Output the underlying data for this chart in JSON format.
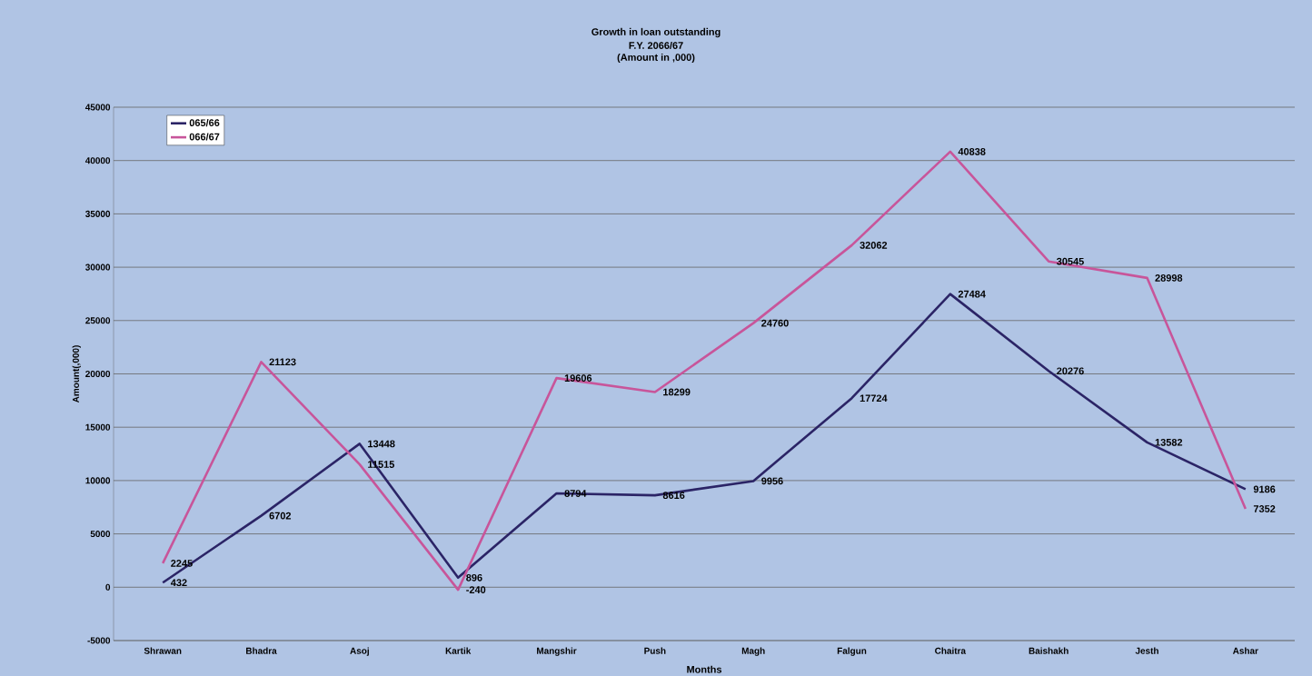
{
  "chart_data": {
    "type": "line",
    "title": "Growth in loan outstanding",
    "subtitle": "F.Y. 2066/67",
    "annotations": [
      "(Amount in ,000)"
    ],
    "xlabel": "Months",
    "ylabel": "Amount(,000)",
    "categories": [
      "Shrawan",
      "Bhadra",
      "Asoj",
      "Kartik",
      "Mangshir",
      "Push",
      "Magh",
      "Falgun",
      "Chaitra",
      "Baishakh",
      "Jesth",
      "Ashar"
    ],
    "series": [
      {
        "name": "065/66",
        "color": "#2b2466",
        "values": [
          432,
          6702,
          13448,
          896,
          8794,
          8616,
          9956,
          17724,
          27484,
          20276,
          13582,
          9186
        ]
      },
      {
        "name": "066/67",
        "color": "#c8559a",
        "values": [
          2245,
          21123,
          11515,
          -240,
          19606,
          18299,
          24760,
          32062,
          40838,
          30545,
          28998,
          7352
        ]
      }
    ],
    "ylim": [
      -5000,
      45000
    ],
    "yticks": [
      -5000,
      0,
      5000,
      10000,
      15000,
      20000,
      25000,
      30000,
      35000,
      40000,
      45000
    ],
    "grid": "y",
    "legend": "top left",
    "data_labels": true,
    "marker": "none",
    "line_style": "solid"
  }
}
